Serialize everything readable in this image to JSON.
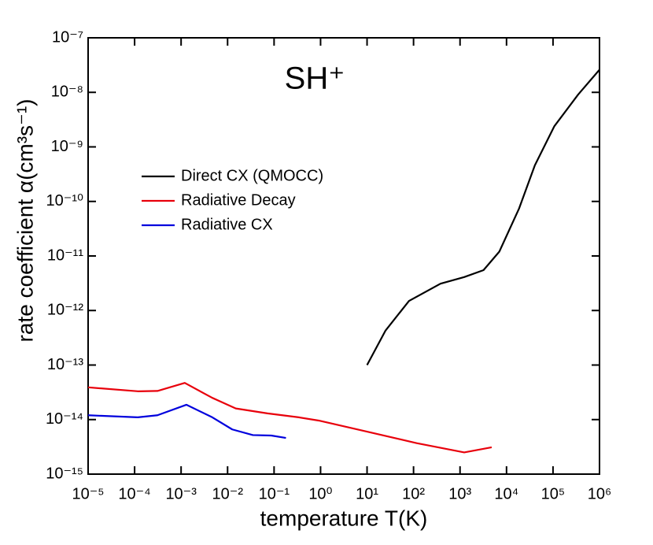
{
  "chart_data": {
    "type": "line",
    "title": "SH⁺",
    "xlabel": "temperature T(K)",
    "ylabel": "rate coefficient α(cm³s⁻¹)",
    "xscale": "log",
    "yscale": "log",
    "xlim": [
      1e-05,
      1000000
    ],
    "ylim": [
      1e-15,
      1e-07
    ],
    "xticks": [
      {
        "value": 1e-05,
        "label": "10⁻⁵"
      },
      {
        "value": 0.0001,
        "label": "10⁻⁴"
      },
      {
        "value": 0.001,
        "label": "10⁻³"
      },
      {
        "value": 0.01,
        "label": "10⁻²"
      },
      {
        "value": 0.1,
        "label": "10⁻¹"
      },
      {
        "value": 1,
        "label": "10⁰"
      },
      {
        "value": 10,
        "label": "10¹"
      },
      {
        "value": 100,
        "label": "10²"
      },
      {
        "value": 1000,
        "label": "10³"
      },
      {
        "value": 10000,
        "label": "10⁴"
      },
      {
        "value": 100000,
        "label": "10⁵"
      },
      {
        "value": 1000000,
        "label": "10⁶"
      }
    ],
    "yticks": [
      {
        "value": 1e-15,
        "label": "10⁻¹⁵"
      },
      {
        "value": 1e-14,
        "label": "10⁻¹⁴"
      },
      {
        "value": 1e-13,
        "label": "10⁻¹³"
      },
      {
        "value": 1e-12,
        "label": "10⁻¹²"
      },
      {
        "value": 1e-11,
        "label": "10⁻¹¹"
      },
      {
        "value": 1e-10,
        "label": "10⁻¹⁰"
      },
      {
        "value": 1e-09,
        "label": "10⁻⁹"
      },
      {
        "value": 1e-08,
        "label": "10⁻⁸"
      },
      {
        "value": 1e-07,
        "label": "10⁻⁷"
      }
    ],
    "legend": "upper left",
    "series": [
      {
        "name": "Direct CX (QMOCC)",
        "color": "#000000",
        "x": [
          10,
          25,
          80,
          380,
          1230,
          3200,
          7000,
          18600,
          40700,
          107000,
          347000,
          1000000
        ],
        "values": [
          1e-13,
          4.3e-13,
          1.5e-12,
          3.1e-12,
          4.1e-12,
          5.5e-12,
          1.2e-11,
          7.4e-11,
          4.6e-10,
          2.4e-09,
          9.1e-09,
          2.6e-08
        ]
      },
      {
        "name": "Radiative Decay",
        "color": "#e8000b",
        "x": [
          1e-05,
          0.000117,
          0.00031,
          0.0012,
          0.0047,
          0.015,
          0.072,
          0.34,
          0.91,
          10,
          117,
          1230,
          4800
        ],
        "values": [
          3.9e-14,
          3.3e-14,
          3.35e-14,
          4.7e-14,
          2.5e-14,
          1.6e-14,
          1.3e-14,
          1.1e-14,
          9.6e-15,
          6e-15,
          3.7e-15,
          2.5e-15,
          3.1e-15
        ]
      },
      {
        "name": "Radiative CX",
        "color": "#0000dd",
        "x": [
          1e-05,
          0.000117,
          0.00031,
          0.0013,
          0.0047,
          0.0126,
          0.035,
          0.087,
          0.18
        ],
        "values": [
          1.2e-14,
          1.1e-14,
          1.2e-14,
          1.87e-14,
          1.1e-14,
          6.6e-15,
          5.2e-15,
          5.1e-15,
          4.6e-15
        ]
      }
    ]
  }
}
